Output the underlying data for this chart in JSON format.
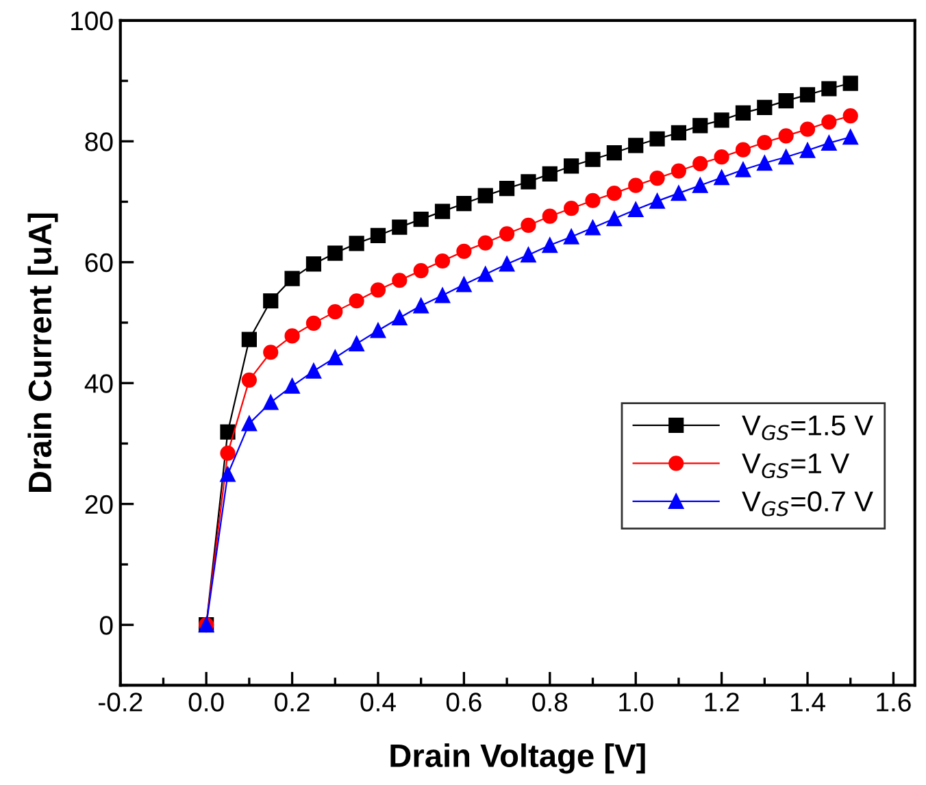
{
  "chart_data": {
    "type": "line",
    "xlabel": "Drain Voltage [V]",
    "ylabel": "Drain Current [uA]",
    "x": [
      0,
      0.05,
      0.1,
      0.15,
      0.2,
      0.25,
      0.3,
      0.35,
      0.4,
      0.45,
      0.5,
      0.55,
      0.6,
      0.65,
      0.7,
      0.75,
      0.8,
      0.85,
      0.9,
      0.95,
      1.0,
      1.05,
      1.1,
      1.15,
      1.2,
      1.25,
      1.3,
      1.35,
      1.4,
      1.45,
      1.5
    ],
    "series": [
      {
        "name": "V$_{GS}$=1.5 V",
        "color": "#000000",
        "marker": "square",
        "values": [
          0,
          31.9,
          47.2,
          53.6,
          57.3,
          59.7,
          61.5,
          63.1,
          64.4,
          65.8,
          67.1,
          68.4,
          69.7,
          71.0,
          72.2,
          73.3,
          74.6,
          75.9,
          77.0,
          78.1,
          79.3,
          80.4,
          81.4,
          82.6,
          83.5,
          84.7,
          85.6,
          86.7,
          87.7,
          88.7,
          89.6
        ]
      },
      {
        "name": "V$_{GS}$=1 V",
        "color": "#ff0000",
        "marker": "circle",
        "values": [
          0,
          28.4,
          40.5,
          45.1,
          47.8,
          49.9,
          51.8,
          53.6,
          55.4,
          57.0,
          58.6,
          60.2,
          61.8,
          63.2,
          64.7,
          66.1,
          67.6,
          68.9,
          70.2,
          71.4,
          72.7,
          73.9,
          75.1,
          76.3,
          77.4,
          78.6,
          79.8,
          80.9,
          82.0,
          83.2,
          84.2
        ]
      },
      {
        "name": "V$_{GS}$=0.7 V",
        "color": "#0000ff",
        "marker": "triangle",
        "values": [
          0,
          24.9,
          33.3,
          36.8,
          39.5,
          42.0,
          44.2,
          46.5,
          48.7,
          50.8,
          52.8,
          54.5,
          56.3,
          58.0,
          59.7,
          61.2,
          62.8,
          64.2,
          65.7,
          67.2,
          68.7,
          70.1,
          71.4,
          72.7,
          74.0,
          75.3,
          76.4,
          77.4,
          78.5,
          79.7,
          80.7
        ]
      }
    ],
    "xlim": [
      -0.2,
      1.65
    ],
    "ylim": [
      -10,
      100
    ],
    "xticks": [
      {
        "value": -0.2,
        "label": "-0.2"
      },
      {
        "value": -0.1,
        "label": null
      },
      {
        "value": 0,
        "label": "0.0"
      },
      {
        "value": 0.1,
        "label": null
      },
      {
        "value": 0.2,
        "label": "0.2"
      },
      {
        "value": 0.3,
        "label": null
      },
      {
        "value": 0.4,
        "label": "0.4"
      },
      {
        "value": 0.5,
        "label": null
      },
      {
        "value": 0.6,
        "label": "0.6"
      },
      {
        "value": 0.7,
        "label": null
      },
      {
        "value": 0.8,
        "label": "0.8"
      },
      {
        "value": 0.9,
        "label": null
      },
      {
        "value": 1.0,
        "label": "1.0"
      },
      {
        "value": 1.1,
        "label": null
      },
      {
        "value": 1.2,
        "label": "1.2"
      },
      {
        "value": 1.3,
        "label": null
      },
      {
        "value": 1.4,
        "label": "1.4"
      },
      {
        "value": 1.5,
        "label": null
      },
      {
        "value": 1.6,
        "label": "1.6"
      }
    ],
    "yticks": [
      {
        "value": -10,
        "label": null
      },
      0,
      {
        "value": 10,
        "label": null
      },
      20,
      {
        "value": 30,
        "label": null
      },
      40,
      {
        "value": 50,
        "label": null
      },
      60,
      {
        "value": 70,
        "label": null
      },
      80,
      {
        "value": 90,
        "label": null
      },
      100
    ],
    "legend": "right",
    "grid": false,
    "line_style": "solid"
  }
}
